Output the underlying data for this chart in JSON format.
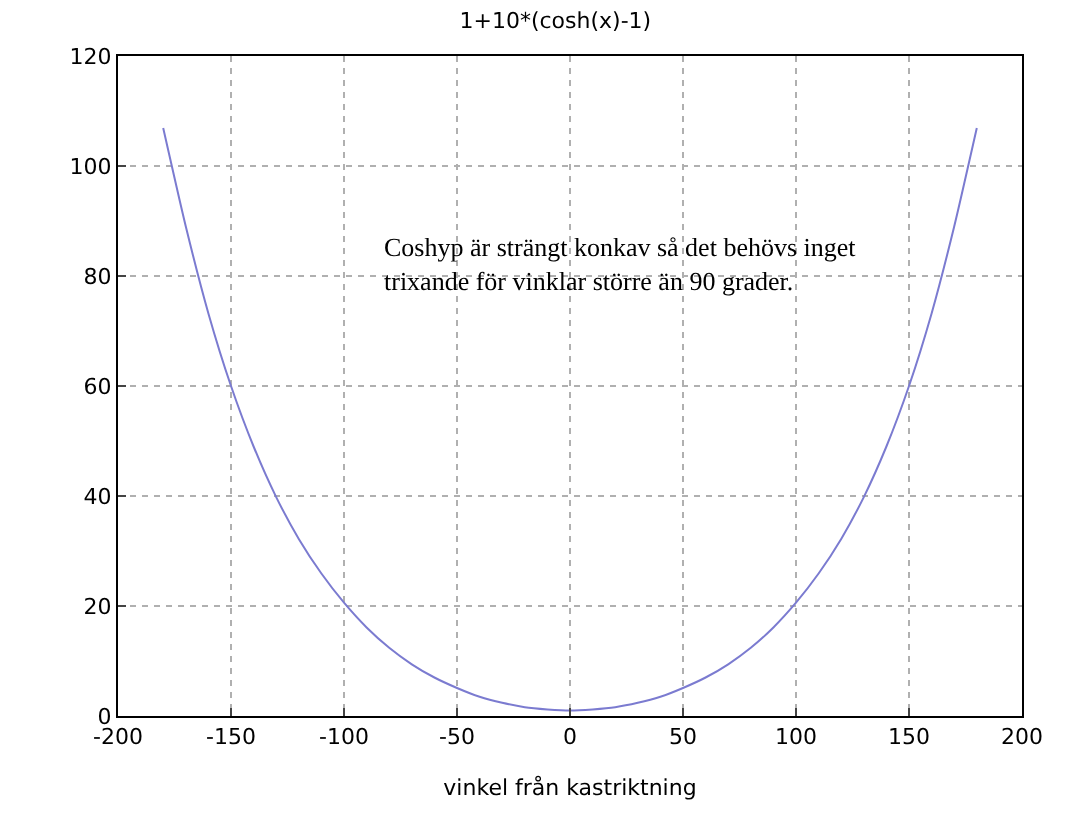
{
  "chart_data": {
    "type": "line",
    "title": "1+10*(cosh(x)-1)",
    "xlabel": "vinkel från kastriktning",
    "x": [
      -180,
      -170,
      -160,
      -150,
      -140,
      -130,
      -120,
      -110,
      -100,
      -90,
      -80,
      -70,
      -60,
      -50,
      -40,
      -30,
      -20,
      -10,
      0,
      10,
      20,
      30,
      40,
      50,
      60,
      70,
      80,
      90,
      100,
      110,
      120,
      130,
      140,
      150,
      160,
      170,
      180
    ],
    "series": [
      {
        "color": "#7b7bd0",
        "values": [
          106.9,
          89.0,
          73.2,
          60.0,
          49.0,
          39.8,
          32.2,
          25.9,
          20.6,
          16.1,
          12.4,
          9.4,
          7.0,
          5.1,
          3.5,
          2.4,
          1.6,
          1.2,
          1.0,
          1.2,
          1.6,
          2.4,
          3.5,
          5.1,
          7.0,
          9.4,
          12.4,
          16.1,
          20.6,
          25.9,
          32.2,
          39.8,
          49.0,
          60.0,
          73.2,
          89.0,
          106.9
        ]
      }
    ],
    "xlim": [
      -200,
      200
    ],
    "xticks": [
      -200,
      -150,
      -100,
      -50,
      0,
      50,
      100,
      150,
      200
    ],
    "ylim": [
      0,
      120
    ],
    "yticks": [
      0,
      20,
      40,
      60,
      80,
      100,
      120
    ],
    "grid": true,
    "line_style": "solid",
    "marker": "none",
    "annotations": [
      "Coshyp är strängt konkav så det behövs inget trixande för vinklar större än 90 grader."
    ]
  }
}
